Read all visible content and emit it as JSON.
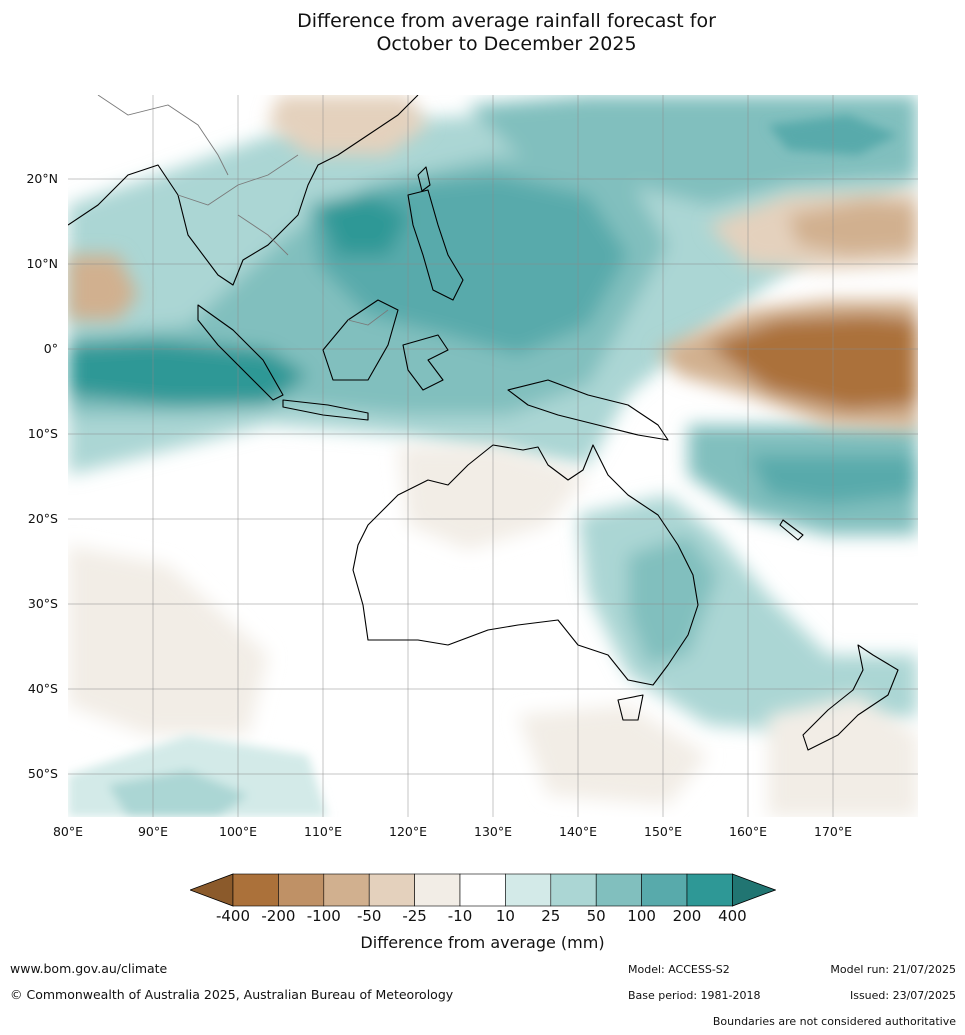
{
  "title_line1": "Difference from average rainfall forecast for",
  "title_line2": "October to December 2025",
  "lat_labels": [
    "20°N",
    "10°N",
    "0°",
    "10°S",
    "20°S",
    "30°S",
    "40°S",
    "50°S"
  ],
  "lon_labels": [
    "80°E",
    "90°E",
    "100°E",
    "110°E",
    "120°E",
    "130°E",
    "140°E",
    "150°E",
    "160°E",
    "170°E"
  ],
  "legend": {
    "title": "Difference from average (mm)",
    "ticks": [
      "-400",
      "-200",
      "-100",
      "-50",
      "-25",
      "-10",
      "10",
      "25",
      "50",
      "100",
      "200",
      "400"
    ],
    "colors": [
      "#8b5a2b",
      "#ab713a",
      "#bf9166",
      "#d1b08f",
      "#e4d1bd",
      "#f2ede6",
      "#ffffff",
      "#d3eae8",
      "#abd6d4",
      "#81bfbe",
      "#58aaab",
      "#2e9896",
      "#217572"
    ]
  },
  "footer": {
    "url": "www.bom.gov.au/climate",
    "copyright": "© Commonwealth of Australia 2025, Australian Bureau of Meteorology",
    "model": "Model: ACCESS-S2",
    "base_period": "Base period: 1981-2018",
    "model_run": "Model run: 21/07/2025",
    "issued": "Issued: 23/07/2025",
    "disclaimer": "Boundaries are not considered authoritative"
  }
}
